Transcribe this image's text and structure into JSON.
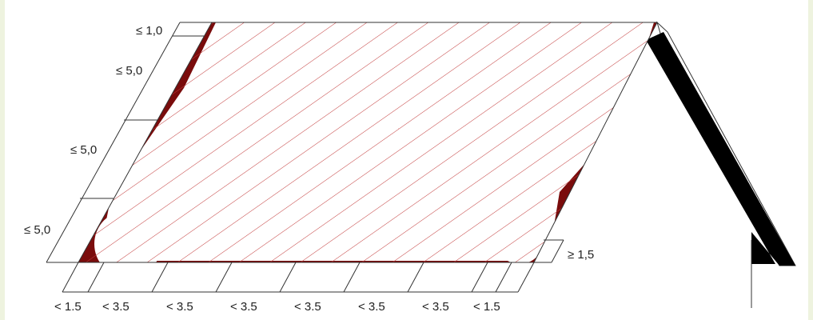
{
  "labels": {
    "left": [
      "≤ 1,0",
      "≤ 5,0",
      "≤ 5,0",
      "≤ 5,0"
    ],
    "right": "≥ 1,5",
    "bottom": [
      "< 1.5",
      "< 3.5",
      "< 3.5",
      "< 3.5",
      "< 3.5",
      "< 3.5",
      "< 3.5",
      "< 1.5"
    ]
  }
}
